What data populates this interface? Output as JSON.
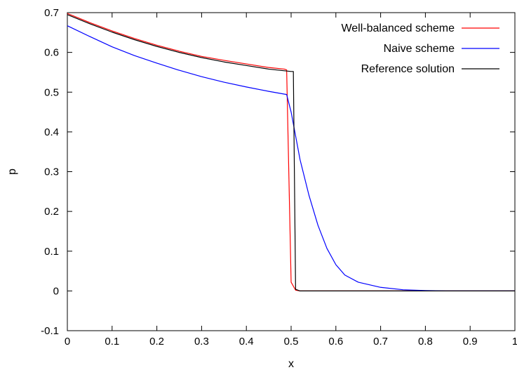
{
  "chart_data": {
    "type": "line",
    "title": "",
    "xlabel": "x",
    "ylabel": "p",
    "xlim": [
      0,
      1
    ],
    "ylim": [
      -0.1,
      0.7
    ],
    "x_ticks": [
      0,
      0.1,
      0.2,
      0.3,
      0.4,
      0.5,
      0.6,
      0.7,
      0.8,
      0.9,
      1
    ],
    "x_tick_labels": [
      "0",
      "0.1",
      "0.2",
      "0.3",
      "0.4",
      "0.5",
      "0.6",
      "0.7",
      "0.8",
      "0.9",
      "1"
    ],
    "y_ticks": [
      -0.1,
      0,
      0.1,
      0.2,
      0.3,
      0.4,
      0.5,
      0.6,
      0.7
    ],
    "y_tick_labels": [
      "-0.1",
      "0",
      "0.1",
      "0.2",
      "0.3",
      "0.4",
      "0.5",
      "0.6",
      "0.7"
    ],
    "grid": false,
    "legend_position": "top-right",
    "series": [
      {
        "name": "Well-balanced scheme",
        "color": "#ff0000",
        "x": [
          0,
          0.05,
          0.1,
          0.15,
          0.2,
          0.25,
          0.3,
          0.35,
          0.4,
          0.45,
          0.485,
          0.49,
          0.5,
          0.51,
          0.52,
          0.6,
          0.7,
          0.8,
          0.9,
          1.0
        ],
        "y": [
          0.698,
          0.675,
          0.654,
          0.635,
          0.618,
          0.603,
          0.59,
          0.58,
          0.571,
          0.562,
          0.558,
          0.556,
          0.022,
          0.002,
          0,
          0,
          0,
          0,
          0,
          0
        ]
      },
      {
        "name": "Naive scheme",
        "color": "#0000ff",
        "x": [
          0,
          0.05,
          0.1,
          0.15,
          0.2,
          0.25,
          0.3,
          0.35,
          0.4,
          0.45,
          0.49,
          0.5,
          0.52,
          0.54,
          0.56,
          0.58,
          0.6,
          0.62,
          0.65,
          0.7,
          0.75,
          0.8,
          0.85,
          0.9,
          1.0
        ],
        "y": [
          0.667,
          0.64,
          0.614,
          0.592,
          0.573,
          0.555,
          0.539,
          0.525,
          0.513,
          0.502,
          0.494,
          0.45,
          0.33,
          0.24,
          0.165,
          0.107,
          0.066,
          0.04,
          0.022,
          0.009,
          0.003,
          0.001,
          0,
          0,
          0
        ]
      },
      {
        "name": "Reference solution",
        "color": "#000000",
        "x": [
          0,
          0.05,
          0.1,
          0.15,
          0.2,
          0.25,
          0.3,
          0.35,
          0.4,
          0.45,
          0.5,
          0.505,
          0.51,
          0.52,
          0.6,
          0.7,
          0.8,
          0.9,
          1.0
        ],
        "y": [
          0.695,
          0.672,
          0.651,
          0.632,
          0.615,
          0.6,
          0.587,
          0.576,
          0.567,
          0.558,
          0.552,
          0.552,
          0.004,
          0,
          0,
          0,
          0,
          0,
          0
        ]
      }
    ]
  }
}
